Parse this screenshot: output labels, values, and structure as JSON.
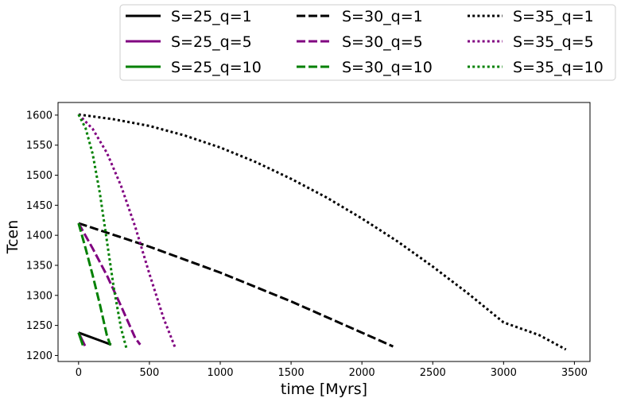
{
  "chart_data": {
    "type": "line",
    "xlabel": "time [Myrs]",
    "ylabel": "Tcen",
    "xlim": [
      -145,
      3610
    ],
    "ylim": [
      1190,
      1621
    ],
    "xticks": [
      0,
      500,
      1000,
      1500,
      2000,
      2500,
      3000,
      3500
    ],
    "yticks": [
      1200,
      1250,
      1300,
      1350,
      1400,
      1450,
      1500,
      1550,
      1600
    ],
    "grid": false,
    "legend_placement": "top, outside plot",
    "colors": {
      "q1": "#000000",
      "q5": "#800080",
      "q10": "#008000"
    },
    "series": [
      {
        "name": "S=25_q=1",
        "color": "#000000",
        "style": "solid",
        "x": [
          0,
          230
        ],
        "y": [
          1238,
          1218
        ]
      },
      {
        "name": "S=25_q=5",
        "color": "#800080",
        "style": "solid",
        "x": [
          0,
          45
        ],
        "y": [
          1238,
          1216
        ]
      },
      {
        "name": "S=25_q=10",
        "color": "#008000",
        "style": "solid",
        "x": [
          0,
          30
        ],
        "y": [
          1238,
          1217
        ]
      },
      {
        "name": "S=30_q=1",
        "color": "#000000",
        "style": "dashed",
        "x": [
          0,
          500,
          1000,
          1500,
          2000,
          2220
        ],
        "y": [
          1420,
          1381,
          1338,
          1290,
          1238,
          1215
        ]
      },
      {
        "name": "S=30_q=5",
        "color": "#800080",
        "style": "dashed",
        "x": [
          0,
          100,
          200,
          300,
          400,
          435
        ],
        "y": [
          1420,
          1378,
          1333,
          1282,
          1229,
          1218
        ]
      },
      {
        "name": "S=30_q=10",
        "color": "#008000",
        "style": "dashed",
        "x": [
          0,
          50,
          100,
          150,
          200,
          225
        ],
        "y": [
          1420,
          1378,
          1333,
          1285,
          1233,
          1217
        ]
      },
      {
        "name": "S=35_q=1",
        "color": "#000000",
        "style": "dotted",
        "x": [
          0,
          250,
          500,
          750,
          1000,
          1250,
          1500,
          1750,
          2000,
          2250,
          2500,
          2750,
          3000,
          3250,
          3440
        ],
        "y": [
          1601,
          1593,
          1582,
          1566,
          1546,
          1522,
          1494,
          1463,
          1428,
          1390,
          1348,
          1303,
          1255,
          1234,
          1210
        ]
      },
      {
        "name": "S=35_q=5",
        "color": "#800080",
        "style": "dotted",
        "x": [
          0,
          100,
          200,
          300,
          400,
          500,
          600,
          680
        ],
        "y": [
          1601,
          1577,
          1537,
          1482,
          1414,
          1336,
          1262,
          1214
        ]
      },
      {
        "name": "S=35_q=10",
        "color": "#008000",
        "style": "dotted",
        "x": [
          0,
          50,
          100,
          150,
          200,
          250,
          300,
          340
        ],
        "y": [
          1601,
          1578,
          1535,
          1470,
          1390,
          1310,
          1245,
          1210
        ]
      }
    ]
  }
}
